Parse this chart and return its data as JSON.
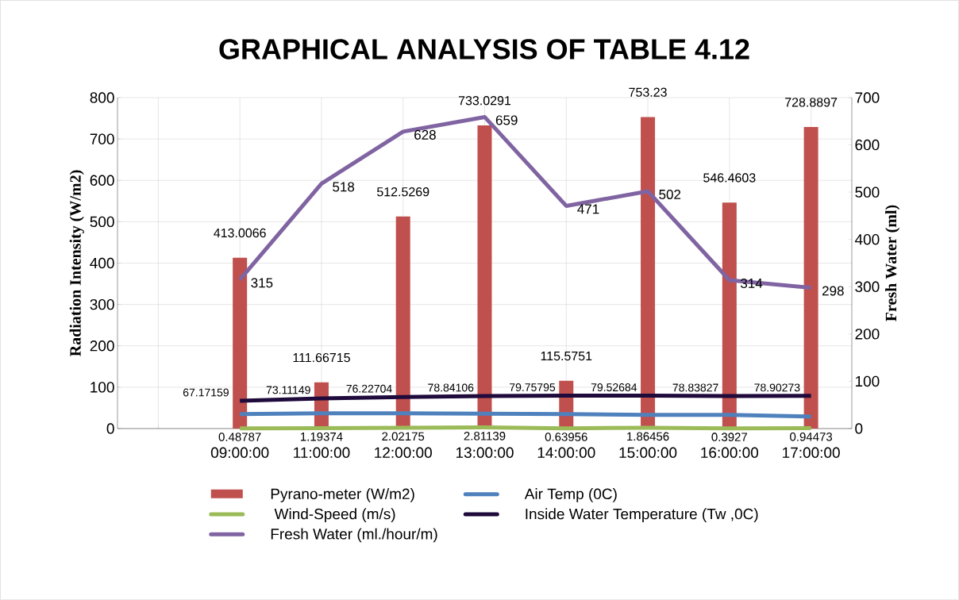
{
  "chart_data": {
    "type": "bar",
    "title": "GRAPHICAL ANALYSIS OF TABLE 4.12",
    "ylabel": "Radiation Intensity (W/m2)",
    "y2label": "Fresh Water (ml)",
    "categories": [
      null,
      "09:00:00",
      "11:00:00",
      "12:00:00",
      "13:00:00",
      "14:00:00",
      "15:00:00",
      "16:00:00",
      "17:00:00"
    ],
    "series": [
      {
        "name": "Pyrano-meter        (W/m2)",
        "color": "#c0504d",
        "values": [
          null,
          413.0066,
          111.66715,
          512.5269,
          733.0291,
          115.5751,
          753.23,
          546.4603,
          728.8897
        ],
        "value_labels": [
          null,
          "413.0066",
          "111.66715",
          "512.5269",
          "733.0291",
          "115.5751",
          "753.23",
          "546.4603",
          "728.8897"
        ]
      },
      {
        "name": "Air Temp     (0C)",
        "type": "line",
        "color": "#4f81bd",
        "values": [
          null,
          35,
          37,
          37,
          36,
          35,
          33,
          33,
          29
        ]
      },
      {
        "name": "  Wind-Speed      (m/s)",
        "type": "line",
        "color": "#9bbb59",
        "values": [
          null,
          0.48787,
          1.19374,
          2.02175,
          2.81139,
          0.63956,
          1.86456,
          0.3927,
          0.94473
        ],
        "value_labels": [
          null,
          "0.48787",
          "1.19374",
          "2.02175",
          "2.81139",
          "0.63956",
          "1.86456",
          "0.3927",
          "0.94473"
        ]
      },
      {
        "name": "Inside Water Temperature (Tw ,0C)",
        "type": "line",
        "color": "#1f0a3c",
        "values": [
          null,
          67.17159,
          73.11149,
          76.22704,
          78.84106,
          79.75795,
          79.52684,
          78.83827,
          78.90273
        ],
        "value_labels": [
          null,
          "67.17159",
          "73.11149",
          "76.22704",
          "78.84106",
          "79.75795",
          "79.52684",
          "78.83827",
          "78.90273"
        ]
      },
      {
        "name": "Fresh Water (ml./hour/m)",
        "type": "line",
        "axis": "y2",
        "color": "#8064a2",
        "values": [
          null,
          315,
          518,
          628,
          659,
          471,
          502,
          314,
          298
        ],
        "value_labels": [
          null,
          "315",
          "518",
          "628",
          "659",
          "471",
          "502",
          "314",
          "298"
        ]
      }
    ],
    "ylim": [
      0,
      800
    ],
    "yticks": [
      0,
      100,
      200,
      300,
      400,
      500,
      600,
      700,
      800
    ],
    "y2lim": [
      0,
      700
    ],
    "y2ticks": [
      0,
      100,
      200,
      300,
      400,
      500,
      600,
      700
    ],
    "grid": true,
    "legend": "bottom",
    "marker": "none",
    "line_style": "solid"
  }
}
